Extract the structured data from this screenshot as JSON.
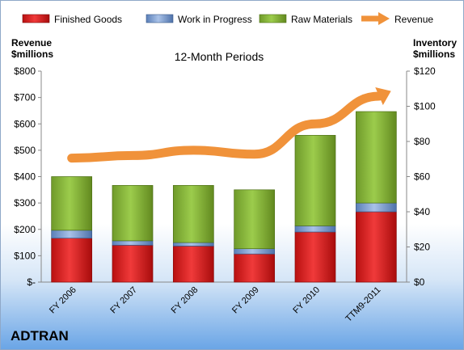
{
  "company": "ADTRAN",
  "chart_data": {
    "type": "bar",
    "subtitle": "12-Month Periods",
    "left_axis": {
      "title_line1": "Revenue",
      "title_line2": "$millions",
      "ylim": [
        0,
        800
      ],
      "tick_labels": [
        "$-",
        "$100",
        "$200",
        "$300",
        "$400",
        "$500",
        "$600",
        "$700",
        "$800"
      ]
    },
    "right_axis": {
      "title_line1": "Inventory",
      "title_line2": "$millions",
      "ylim": [
        0,
        120
      ],
      "tick_labels": [
        "$0",
        "$20",
        "$40",
        "$60",
        "$80",
        "$100",
        "$120"
      ]
    },
    "categories": [
      "FY 2006",
      "FY 2007",
      "FY 2008",
      "FY 2009",
      "FY 2010",
      "TTM9-2011"
    ],
    "stacked": true,
    "series": [
      {
        "name": "Finished Goods",
        "kind": "bar",
        "axis": "right",
        "color": "#e02020",
        "values": [
          25,
          21,
          20.5,
          16,
          28.5,
          40
        ]
      },
      {
        "name": "Work in Progress",
        "kind": "bar",
        "axis": "right",
        "color": "#6e93cc",
        "values": [
          4.5,
          2.5,
          2,
          3,
          3.5,
          5
        ]
      },
      {
        "name": "Raw Materials",
        "kind": "bar",
        "axis": "right",
        "color": "#8ebf3a",
        "values": [
          30.5,
          31.5,
          32.5,
          33.5,
          51.5,
          52
        ]
      },
      {
        "name": "Revenue",
        "kind": "line",
        "axis": "left",
        "color": "#f0923a",
        "values": [
          470,
          480,
          500,
          485,
          600,
          700
        ]
      }
    ],
    "legend": {
      "position": "top"
    },
    "grid": false
  }
}
